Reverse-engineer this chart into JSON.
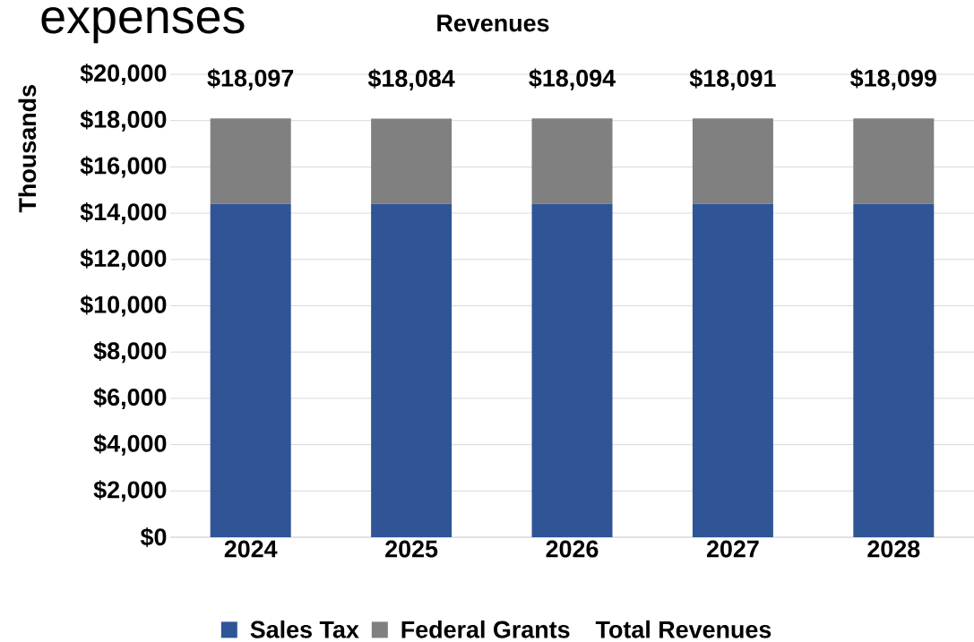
{
  "chart_data": {
    "type": "bar",
    "title": "Revenues",
    "ylabel": "Thousands",
    "stacked": true,
    "grid": "y",
    "legend": "bottom",
    "annotations": [
      "expenses"
    ],
    "categories": [
      "2024",
      "2025",
      "2026",
      "2027",
      "2028"
    ],
    "series": [
      {
        "name": "Sales Tax",
        "color": "#2f5597",
        "values": [
          14400,
          14400,
          14400,
          14400,
          14400
        ]
      },
      {
        "name": "Federal Grants",
        "color": "#808080",
        "values": [
          3697,
          3684,
          3694,
          3691,
          3699
        ]
      },
      {
        "name": "Total Revenues",
        "type": "line",
        "values": [
          null,
          null,
          null,
          null,
          null
        ]
      }
    ],
    "totals": [
      "$18,097",
      "$18,084",
      "$18,094",
      "$18,091",
      "$18,099"
    ],
    "ylim": [
      0,
      20000
    ],
    "yticks": [
      {
        "value": 0,
        "label": "$0"
      },
      {
        "value": 2000,
        "label": "$2,000"
      },
      {
        "value": 4000,
        "label": "$4,000"
      },
      {
        "value": 6000,
        "label": "$6,000"
      },
      {
        "value": 8000,
        "label": "$8,000"
      },
      {
        "value": 10000,
        "label": "$10,000"
      },
      {
        "value": 12000,
        "label": "$12,000"
      },
      {
        "value": 14000,
        "label": "$14,000"
      },
      {
        "value": 16000,
        "label": "$16,000"
      },
      {
        "value": 18000,
        "label": "$18,000"
      },
      {
        "value": 20000,
        "label": "$20,000"
      }
    ]
  }
}
